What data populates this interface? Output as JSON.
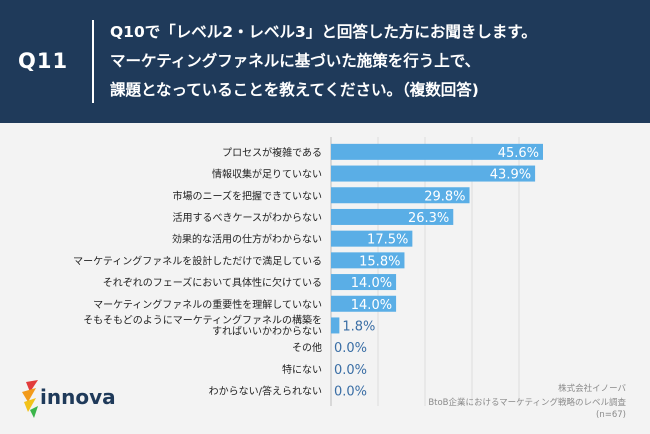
{
  "header": {
    "question_number": "Q11",
    "title_lines": [
      "Q10で「レベル2・レベル3」と回答した方にお聞きします。",
      "マーケティングファネルに基づいた施策を行う上で、",
      "課題となっていることを教えてください。（複数回答)"
    ]
  },
  "chart_data": {
    "type": "bar",
    "orientation": "horizontal",
    "categories": [
      "プロセスが複雑である",
      "情報収集が足りていない",
      "市場のニーズを把握できていない",
      "活用するべきケースがわからない",
      "効果的な活用の仕方がわからない",
      "マーケティングファネルを設計しただけで満足している",
      "それぞれのフェーズにおいて具体性に欠けている",
      "マーケティングファネルの重要性を理解していない",
      "そもそもどのようにマーケティングファネルの構築を すればいいかわからない",
      "その他",
      "特にない",
      "わからない/答えられない"
    ],
    "category_lines": [
      [
        "プロセスが複雑である"
      ],
      [
        "情報収集が足りていない"
      ],
      [
        "市場のニーズを把握できていない"
      ],
      [
        "活用するべきケースがわからない"
      ],
      [
        "効果的な活用の仕方がわからない"
      ],
      [
        "マーケティングファネルを設計しただけで満足している"
      ],
      [
        "それぞれのフェーズにおいて具体性に欠けている"
      ],
      [
        "マーケティングファネルの重要性を理解していない"
      ],
      [
        "そもそもどのようにマーケティングファネルの構築を",
        "すればいいかわからない"
      ],
      [
        "その他"
      ],
      [
        "特にない"
      ],
      [
        "わからない/答えられない"
      ]
    ],
    "values": [
      45.6,
      43.9,
      29.8,
      26.3,
      17.5,
      15.8,
      14.0,
      14.0,
      1.8,
      0.0,
      0.0,
      0.0
    ],
    "value_labels": [
      "45.6%",
      "43.9%",
      "29.8%",
      "26.3%",
      "17.5%",
      "15.8%",
      "14.0%",
      "14.0%",
      "1.8%",
      "0.0%",
      "0.0%",
      "0.0%"
    ],
    "xlim": [
      0,
      50
    ],
    "bar_color": "#5aaee6",
    "grid": true
  },
  "footer": {
    "logo_text": "innova",
    "company": "株式会社イノーバ",
    "survey": "BtoB企業におけるマーケティング戦略のレベル調査",
    "sample": "(n=67)"
  },
  "colors": {
    "header_bg": "#1f3a5a",
    "page_bg": "#f3f3f3",
    "bar": "#5aaee6"
  }
}
